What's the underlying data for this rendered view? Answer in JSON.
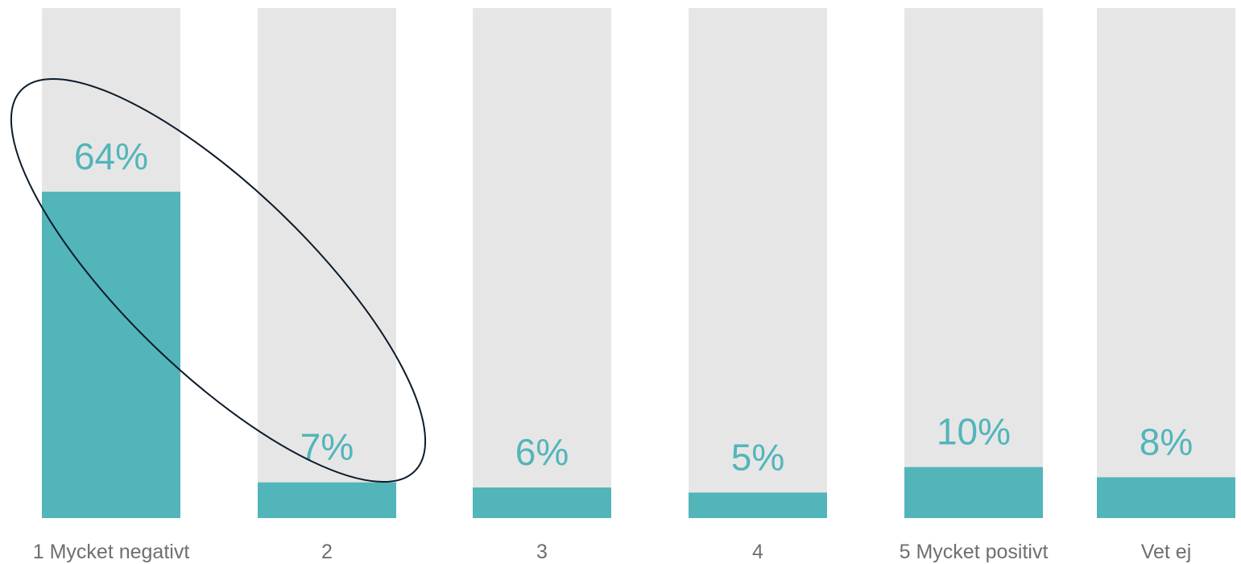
{
  "chart_data": {
    "type": "bar",
    "categories": [
      "1 Mycket negativt",
      "2",
      "3",
      "4",
      "5 Mycket positivt",
      "Vet ej"
    ],
    "values": [
      64,
      7,
      6,
      5,
      10,
      8
    ],
    "value_labels": [
      "64%",
      "7%",
      "6%",
      "5%",
      "10%",
      "8%"
    ],
    "unit": "%",
    "ylim": [
      0,
      100
    ],
    "title": "",
    "xlabel": "",
    "ylabel": "",
    "grid": false,
    "legend": "none",
    "highlight": {
      "shape": "ellipse",
      "categories": [
        "1 Mycket negativt",
        "2"
      ]
    }
  },
  "colors": {
    "bar_fill": "#52b5ba",
    "bar_track": "#e6e6e6",
    "value_label": "#52b5ba",
    "category_label": "#6f6f6f",
    "highlight_stroke": "#0d1b2a"
  }
}
